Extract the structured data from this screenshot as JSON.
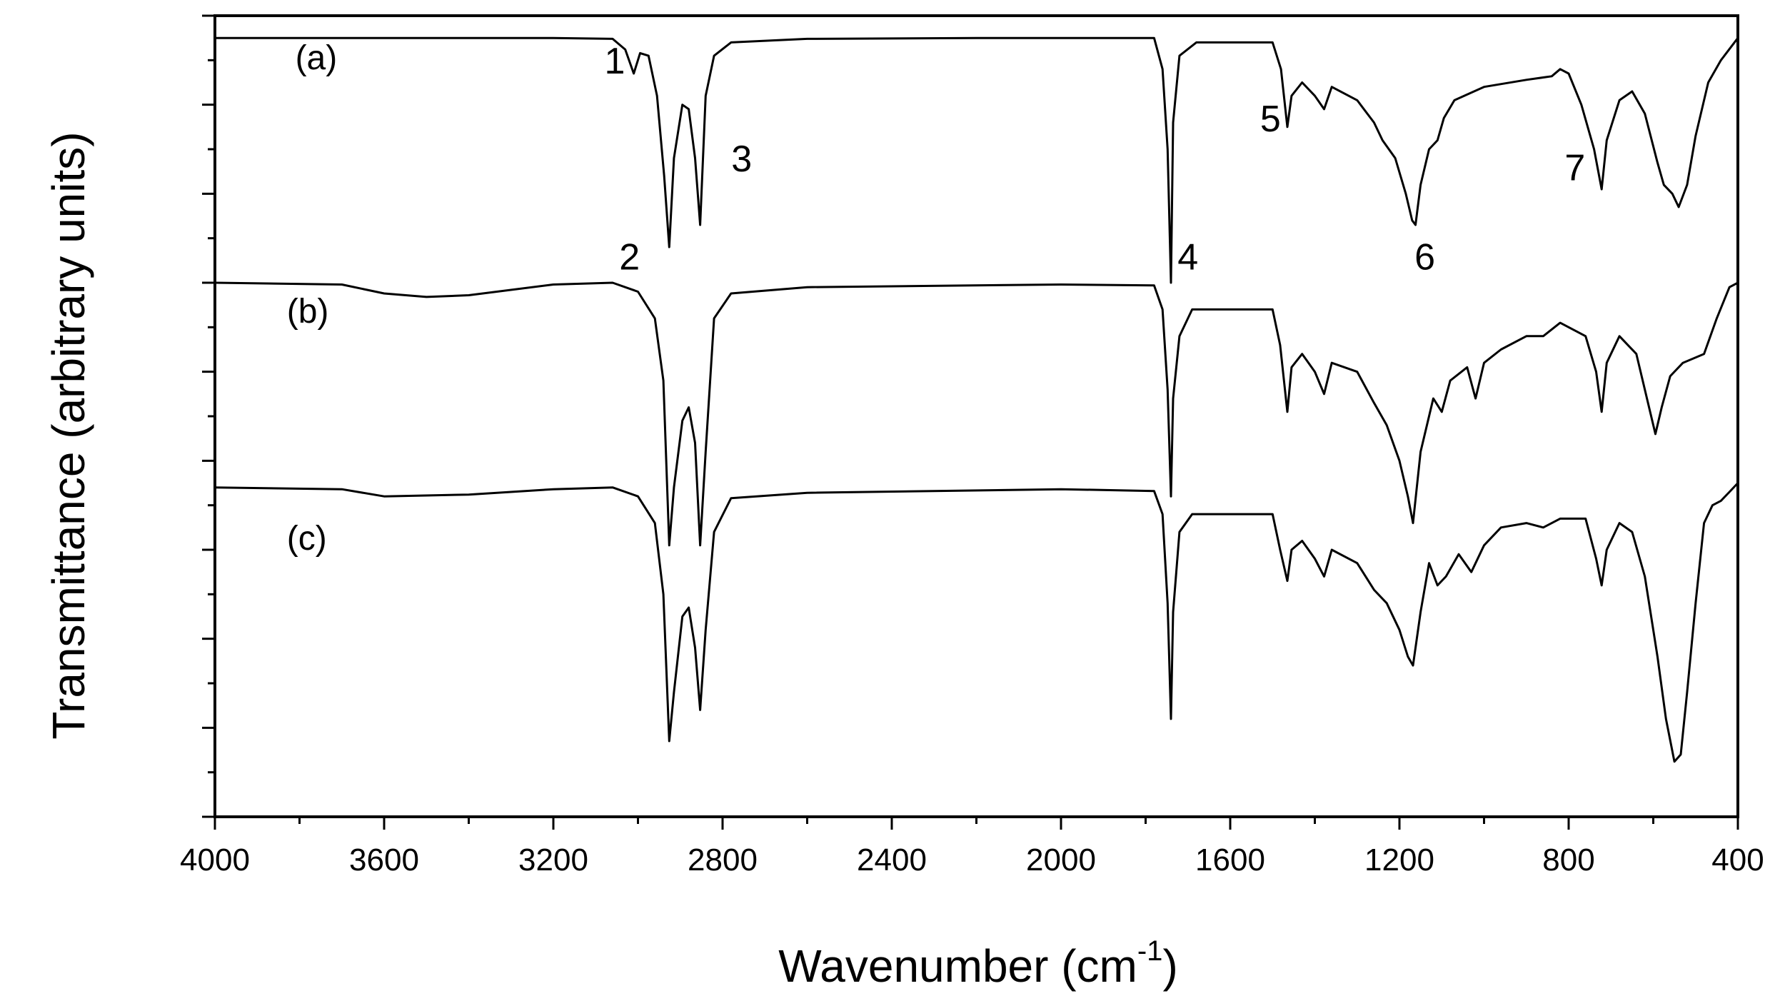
{
  "chart_data": {
    "type": "line",
    "title": "",
    "xlabel": "Wavenumber (cm",
    "xlabel_sup": "-1",
    "xlabel_close": ")",
    "ylabel": "Transmittance (arbitrary units)",
    "xlim": [
      4000,
      400
    ],
    "x_reversed": true,
    "ylim": [
      0,
      9
    ],
    "y_ticks_labeled": false,
    "x_ticks": [
      "4000",
      "3600",
      "3200",
      "2800",
      "2400",
      "2000",
      "1600",
      "1200",
      "800",
      "400"
    ],
    "grid": false,
    "legend": "none",
    "series": [
      {
        "label": "(a)",
        "points": [
          [
            4000,
            8.75
          ],
          [
            3200,
            8.75
          ],
          [
            3060,
            8.74
          ],
          [
            3030,
            8.62
          ],
          [
            3010,
            8.35
          ],
          [
            2995,
            8.58
          ],
          [
            2975,
            8.55
          ],
          [
            2955,
            8.1
          ],
          [
            2938,
            7.2
          ],
          [
            2926,
            6.4
          ],
          [
            2915,
            7.4
          ],
          [
            2895,
            8.0
          ],
          [
            2880,
            7.95
          ],
          [
            2865,
            7.4
          ],
          [
            2853,
            6.65
          ],
          [
            2840,
            8.1
          ],
          [
            2820,
            8.55
          ],
          [
            2780,
            8.7
          ],
          [
            2600,
            8.74
          ],
          [
            2200,
            8.75
          ],
          [
            1780,
            8.75
          ],
          [
            1760,
            8.4
          ],
          [
            1748,
            7.5
          ],
          [
            1740,
            6.0
          ],
          [
            1735,
            7.8
          ],
          [
            1720,
            8.55
          ],
          [
            1680,
            8.7
          ],
          [
            1500,
            8.7
          ],
          [
            1480,
            8.4
          ],
          [
            1465,
            7.75
          ],
          [
            1455,
            8.1
          ],
          [
            1430,
            8.25
          ],
          [
            1400,
            8.1
          ],
          [
            1378,
            7.95
          ],
          [
            1360,
            8.2
          ],
          [
            1300,
            8.05
          ],
          [
            1260,
            7.8
          ],
          [
            1240,
            7.6
          ],
          [
            1210,
            7.4
          ],
          [
            1185,
            7.0
          ],
          [
            1170,
            6.7
          ],
          [
            1162,
            6.65
          ],
          [
            1150,
            7.1
          ],
          [
            1130,
            7.5
          ],
          [
            1110,
            7.6
          ],
          [
            1095,
            7.85
          ],
          [
            1070,
            8.05
          ],
          [
            1000,
            8.2
          ],
          [
            900,
            8.28
          ],
          [
            840,
            8.32
          ],
          [
            820,
            8.4
          ],
          [
            800,
            8.35
          ],
          [
            770,
            8.0
          ],
          [
            740,
            7.5
          ],
          [
            722,
            7.05
          ],
          [
            710,
            7.6
          ],
          [
            680,
            8.05
          ],
          [
            650,
            8.15
          ],
          [
            620,
            7.9
          ],
          [
            590,
            7.35
          ],
          [
            575,
            7.1
          ],
          [
            555,
            7.0
          ],
          [
            540,
            6.85
          ],
          [
            520,
            7.1
          ],
          [
            500,
            7.65
          ],
          [
            470,
            8.25
          ],
          [
            440,
            8.5
          ],
          [
            400,
            8.75
          ]
        ]
      },
      {
        "label": "(b)",
        "points": [
          [
            4000,
            6.0
          ],
          [
            3700,
            5.98
          ],
          [
            3600,
            5.88
          ],
          [
            3500,
            5.84
          ],
          [
            3400,
            5.86
          ],
          [
            3200,
            5.98
          ],
          [
            3060,
            6.0
          ],
          [
            3000,
            5.9
          ],
          [
            2960,
            5.6
          ],
          [
            2940,
            4.9
          ],
          [
            2926,
            3.05
          ],
          [
            2915,
            3.7
          ],
          [
            2895,
            4.45
          ],
          [
            2880,
            4.6
          ],
          [
            2865,
            4.2
          ],
          [
            2853,
            3.05
          ],
          [
            2840,
            4.1
          ],
          [
            2820,
            5.6
          ],
          [
            2780,
            5.88
          ],
          [
            2600,
            5.95
          ],
          [
            2000,
            5.98
          ],
          [
            1780,
            5.97
          ],
          [
            1760,
            5.7
          ],
          [
            1748,
            4.8
          ],
          [
            1740,
            3.6
          ],
          [
            1735,
            4.7
          ],
          [
            1720,
            5.4
          ],
          [
            1690,
            5.7
          ],
          [
            1500,
            5.7
          ],
          [
            1482,
            5.3
          ],
          [
            1465,
            4.55
          ],
          [
            1455,
            5.05
          ],
          [
            1430,
            5.2
          ],
          [
            1400,
            5.0
          ],
          [
            1378,
            4.75
          ],
          [
            1360,
            5.1
          ],
          [
            1300,
            5.0
          ],
          [
            1260,
            4.65
          ],
          [
            1230,
            4.4
          ],
          [
            1200,
            4.0
          ],
          [
            1180,
            3.6
          ],
          [
            1168,
            3.3
          ],
          [
            1150,
            4.1
          ],
          [
            1120,
            4.7
          ],
          [
            1100,
            4.55
          ],
          [
            1080,
            4.9
          ],
          [
            1040,
            5.05
          ],
          [
            1020,
            4.7
          ],
          [
            1000,
            5.1
          ],
          [
            960,
            5.25
          ],
          [
            900,
            5.4
          ],
          [
            860,
            5.4
          ],
          [
            820,
            5.55
          ],
          [
            760,
            5.4
          ],
          [
            735,
            5.0
          ],
          [
            722,
            4.55
          ],
          [
            710,
            5.1
          ],
          [
            680,
            5.4
          ],
          [
            640,
            5.2
          ],
          [
            610,
            4.6
          ],
          [
            595,
            4.3
          ],
          [
            580,
            4.6
          ],
          [
            560,
            4.95
          ],
          [
            530,
            5.1
          ],
          [
            480,
            5.2
          ],
          [
            450,
            5.6
          ],
          [
            420,
            5.95
          ],
          [
            400,
            6.0
          ]
        ]
      },
      {
        "label": "(c)",
        "points": [
          [
            4000,
            3.7
          ],
          [
            3700,
            3.68
          ],
          [
            3600,
            3.6
          ],
          [
            3400,
            3.62
          ],
          [
            3200,
            3.68
          ],
          [
            3060,
            3.7
          ],
          [
            3000,
            3.6
          ],
          [
            2960,
            3.3
          ],
          [
            2940,
            2.5
          ],
          [
            2926,
            0.85
          ],
          [
            2915,
            1.4
          ],
          [
            2895,
            2.25
          ],
          [
            2880,
            2.35
          ],
          [
            2865,
            1.9
          ],
          [
            2853,
            1.2
          ],
          [
            2840,
            2.1
          ],
          [
            2820,
            3.2
          ],
          [
            2780,
            3.58
          ],
          [
            2600,
            3.64
          ],
          [
            2000,
            3.68
          ],
          [
            1780,
            3.66
          ],
          [
            1760,
            3.4
          ],
          [
            1748,
            2.4
          ],
          [
            1740,
            1.1
          ],
          [
            1735,
            2.3
          ],
          [
            1720,
            3.2
          ],
          [
            1690,
            3.4
          ],
          [
            1500,
            3.4
          ],
          [
            1482,
            3.0
          ],
          [
            1465,
            2.65
          ],
          [
            1455,
            3.0
          ],
          [
            1430,
            3.1
          ],
          [
            1400,
            2.9
          ],
          [
            1378,
            2.7
          ],
          [
            1360,
            3.0
          ],
          [
            1300,
            2.85
          ],
          [
            1260,
            2.55
          ],
          [
            1230,
            2.4
          ],
          [
            1200,
            2.1
          ],
          [
            1180,
            1.8
          ],
          [
            1168,
            1.7
          ],
          [
            1150,
            2.3
          ],
          [
            1130,
            2.85
          ],
          [
            1110,
            2.6
          ],
          [
            1090,
            2.7
          ],
          [
            1060,
            2.95
          ],
          [
            1030,
            2.75
          ],
          [
            1000,
            3.05
          ],
          [
            960,
            3.25
          ],
          [
            900,
            3.3
          ],
          [
            860,
            3.25
          ],
          [
            820,
            3.35
          ],
          [
            760,
            3.35
          ],
          [
            735,
            2.9
          ],
          [
            722,
            2.6
          ],
          [
            710,
            3.0
          ],
          [
            680,
            3.3
          ],
          [
            650,
            3.2
          ],
          [
            620,
            2.7
          ],
          [
            590,
            1.8
          ],
          [
            570,
            1.1
          ],
          [
            550,
            0.62
          ],
          [
            535,
            0.7
          ],
          [
            520,
            1.4
          ],
          [
            500,
            2.4
          ],
          [
            480,
            3.3
          ],
          [
            460,
            3.5
          ],
          [
            440,
            3.55
          ],
          [
            420,
            3.65
          ],
          [
            400,
            3.75
          ]
        ]
      }
    ],
    "curve_label_positions": [
      {
        "text": "(a)",
        "x": 3810,
        "y": 8.4
      },
      {
        "text": "(b)",
        "x": 3830,
        "y": 5.55
      },
      {
        "text": "(c)",
        "x": 3830,
        "y": 3.0
      }
    ],
    "peak_annotations": [
      {
        "text": "1",
        "x": 3055,
        "y": 8.35
      },
      {
        "text": "2",
        "x": 3020,
        "y": 6.15
      },
      {
        "text": "3",
        "x": 2755,
        "y": 7.25
      },
      {
        "text": "4",
        "x": 1700,
        "y": 6.15
      },
      {
        "text": "5",
        "x": 1505,
        "y": 7.7
      },
      {
        "text": "6",
        "x": 1140,
        "y": 6.15
      },
      {
        "text": "7",
        "x": 785,
        "y": 7.15
      }
    ],
    "line_color": "#000000"
  }
}
